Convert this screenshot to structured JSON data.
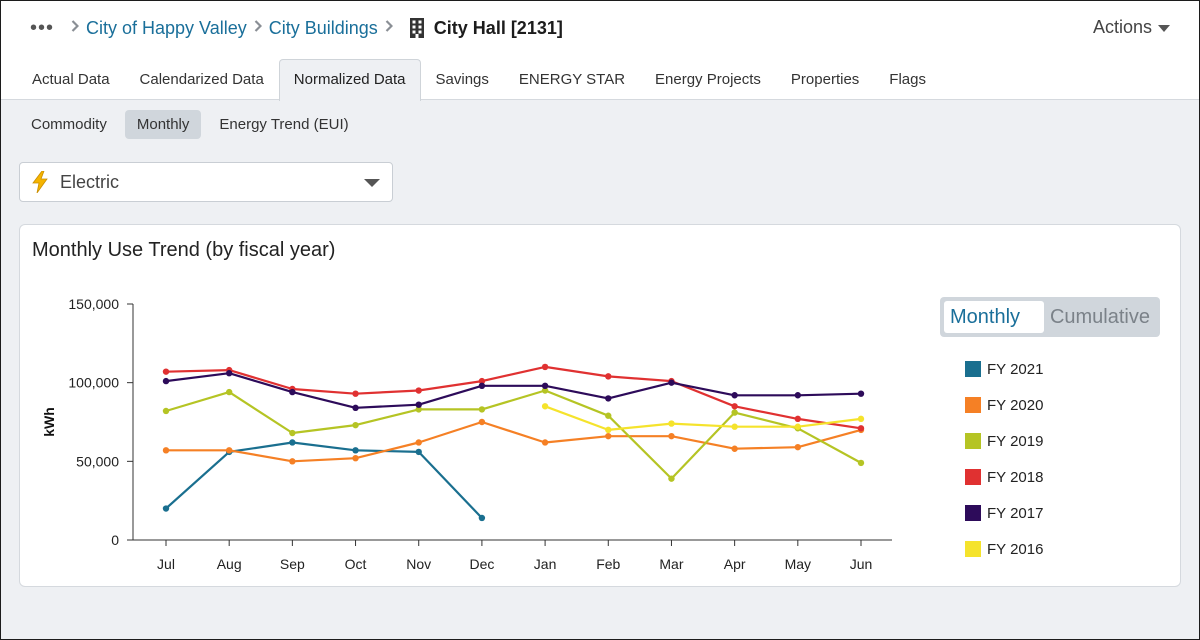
{
  "breadcrumb": {
    "more": "•••",
    "items": [
      "City of Happy Valley",
      "City Buildings"
    ],
    "current": "City Hall [2131]"
  },
  "actions_label": "Actions",
  "tabs": [
    "Actual Data",
    "Calendarized Data",
    "Normalized Data",
    "Savings",
    "ENERGY STAR",
    "Energy Projects",
    "Properties",
    "Flags"
  ],
  "active_tab": "Normalized Data",
  "subtabs": [
    "Commodity",
    "Monthly",
    "Energy Trend (EUI)"
  ],
  "active_subtab": "Monthly",
  "commodity_select": {
    "value": "Electric",
    "icon": "lightning-bolt-icon"
  },
  "card_title": "Monthly Use Trend (by fiscal year)",
  "view_toggle": {
    "options": [
      "Monthly",
      "Cumulative"
    ],
    "selected": "Monthly"
  },
  "chart_data": {
    "type": "line",
    "ylabel": "kWh",
    "xlabel": "",
    "ylim": [
      0,
      150000
    ],
    "yticks": [
      "0",
      "50,000",
      "100,000",
      "150,000"
    ],
    "categories": [
      "Jul",
      "Aug",
      "Sep",
      "Oct",
      "Nov",
      "Dec",
      "Jan",
      "Feb",
      "Mar",
      "Apr",
      "May",
      "Jun"
    ],
    "grid": false,
    "legend_position": "right",
    "series": [
      {
        "name": "FY 2021",
        "color": "#1a6f8f",
        "values": [
          20000,
          56000,
          62000,
          57000,
          56000,
          14000,
          null,
          null,
          null,
          null,
          null,
          null
        ]
      },
      {
        "name": "FY 2020",
        "color": "#f58025",
        "values": [
          57000,
          57000,
          50000,
          52000,
          62000,
          75000,
          62000,
          66000,
          66000,
          58000,
          59000,
          70000
        ]
      },
      {
        "name": "FY 2019",
        "color": "#b5c424",
        "values": [
          82000,
          94000,
          68000,
          73000,
          83000,
          83000,
          95000,
          79000,
          39000,
          81000,
          71000,
          49000
        ]
      },
      {
        "name": "FY 2018",
        "color": "#e03131",
        "values": [
          107000,
          108000,
          96000,
          93000,
          95000,
          101000,
          110000,
          104000,
          101000,
          85000,
          77000,
          71000
        ]
      },
      {
        "name": "FY 2017",
        "color": "#2d0b5a",
        "values": [
          101000,
          106000,
          94000,
          84000,
          86000,
          98000,
          98000,
          90000,
          100000,
          92000,
          92000,
          93000
        ]
      },
      {
        "name": "FY 2016",
        "color": "#f5e32c",
        "values": [
          null,
          null,
          null,
          null,
          null,
          null,
          85000,
          70000,
          74000,
          72000,
          72000,
          77000
        ]
      }
    ]
  }
}
